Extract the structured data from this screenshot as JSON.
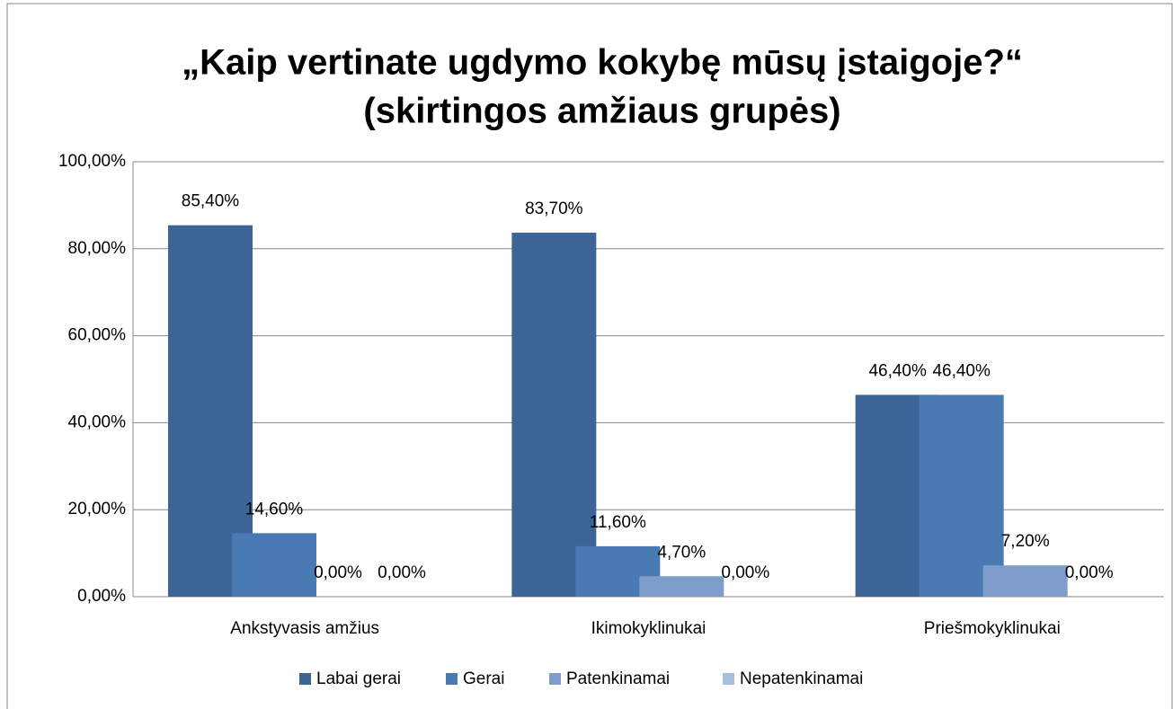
{
  "chart_data": {
    "type": "bar",
    "title": [
      "„Kaip vertinate ugdymo kokybę mūsų įstaigoje?“",
      "(skirtingos amžiaus grupės)"
    ],
    "categories": [
      "Ankstyvasis amžius",
      "Ikimokyklinukai",
      "Priešmokyklinukai"
    ],
    "series": [
      {
        "name": "Labai gerai",
        "color": "#3c6497",
        "values": [
          85.4,
          83.7,
          46.4
        ],
        "value_labels": [
          "85,40%",
          "83,70%",
          "46,40%"
        ]
      },
      {
        "name": "Gerai",
        "color": "#4a7ab4",
        "values": [
          14.6,
          11.6,
          46.4
        ],
        "value_labels": [
          "14,60%",
          "11,60%",
          "46,40%"
        ]
      },
      {
        "name": "Patenkinamai",
        "color": "#7f9dca",
        "values": [
          0,
          4.7,
          7.2
        ],
        "value_labels": [
          "0,00%",
          "4,70%",
          "7,20%"
        ]
      },
      {
        "name": "Nepatenkinamai",
        "color": "#a9bde0",
        "values": [
          0,
          0,
          0
        ],
        "value_labels": [
          "0,00%",
          "0,00%",
          "0,00%"
        ]
      }
    ],
    "ylim": [
      0,
      100
    ],
    "yticks": [
      {
        "value": 0,
        "label": "0,00%"
      },
      {
        "value": 20,
        "label": "20,00%"
      },
      {
        "value": 40,
        "label": "40,00%"
      },
      {
        "value": 60,
        "label": "60,00%"
      },
      {
        "value": 80,
        "label": "80,00%"
      },
      {
        "value": 100,
        "label": "100,00%"
      }
    ],
    "grid": true,
    "legend": "bottom"
  }
}
